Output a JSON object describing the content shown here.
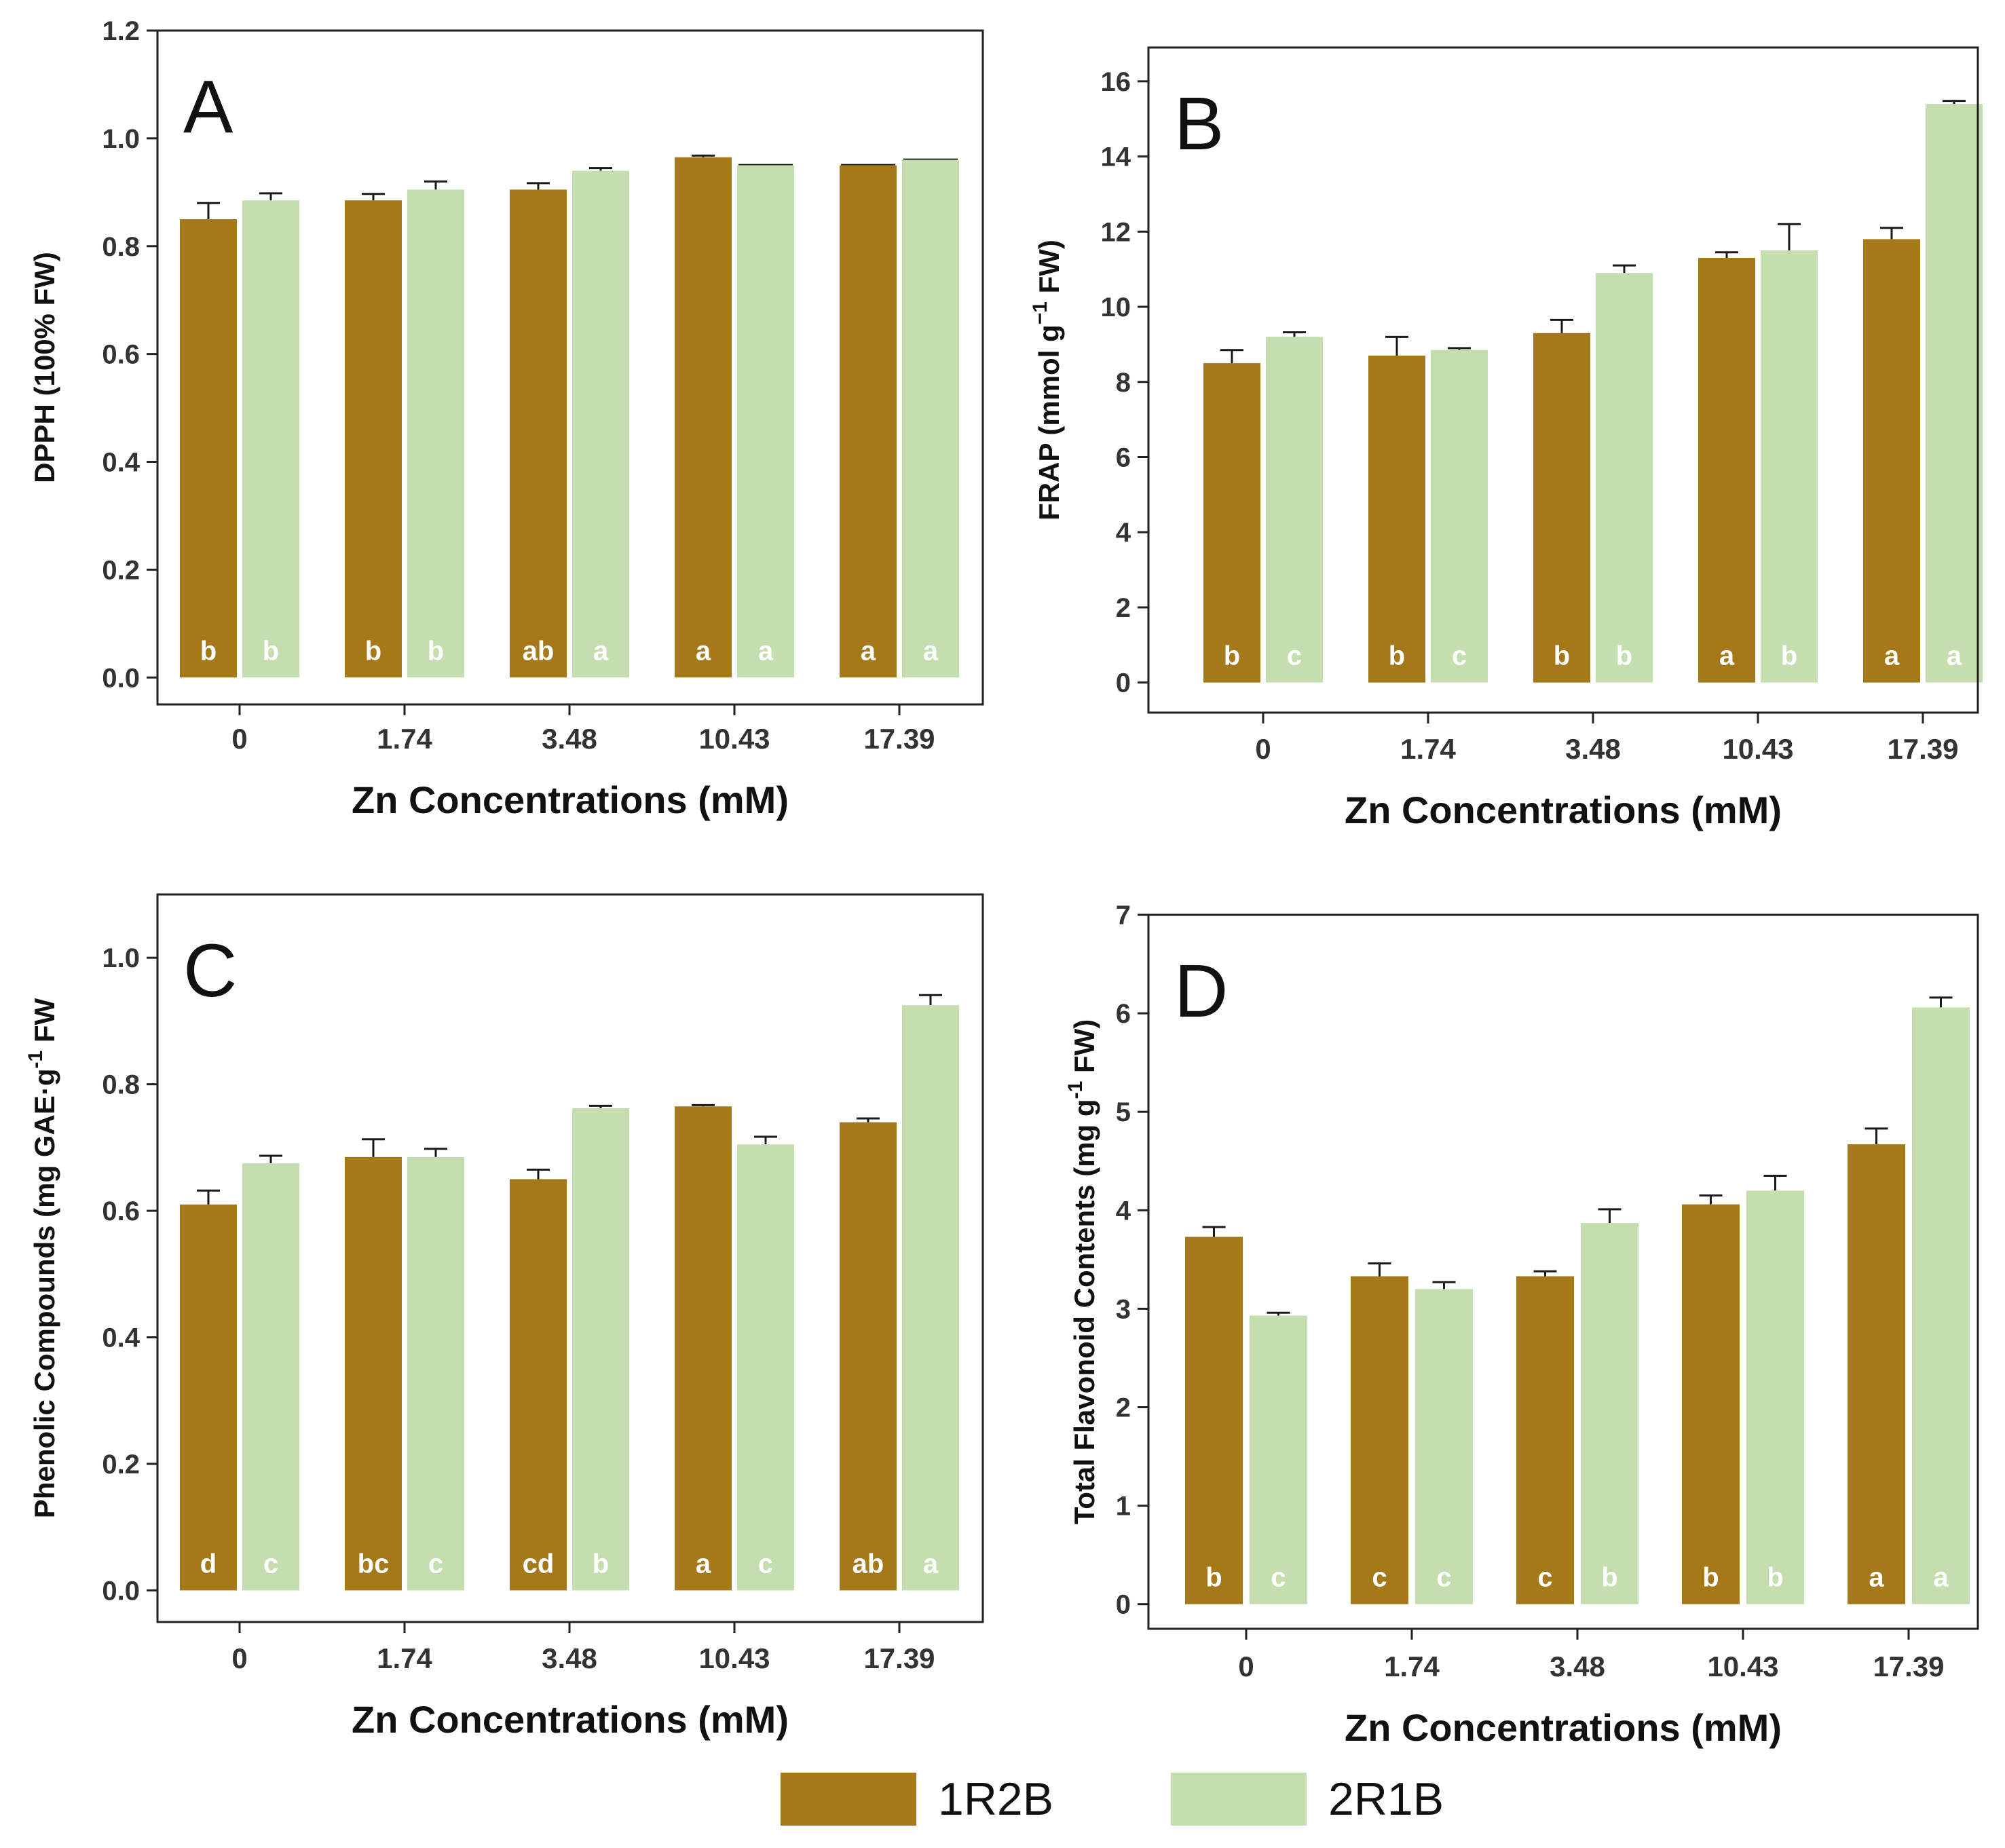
{
  "colors": {
    "series_1": "#A5781A",
    "series_2": "#C5DEB0",
    "axis": "#222222",
    "letter": "#ffffff"
  },
  "legend": {
    "position": "bottom-center",
    "items": [
      "1R2B",
      "2R1B"
    ]
  },
  "chart_data": [
    {
      "type": "bar",
      "panel": "A",
      "categories": [
        "0",
        "1.74",
        "3.48",
        "10.43",
        "17.39"
      ],
      "xlabel": "Zn Concentrations (mM)",
      "ylabel": "DPPH (100% FW)",
      "ylim": [
        -0.05,
        1.2
      ],
      "yticks": [
        "0.0",
        "0.2",
        "0.4",
        "0.6",
        "0.8",
        "1.0",
        "1.2"
      ],
      "series": [
        {
          "name": "1R2B",
          "values": [
            0.85,
            0.885,
            0.905,
            0.965,
            0.95
          ],
          "errors": [
            0.03,
            0.012,
            0.012,
            0.003,
            0.0
          ],
          "letters": [
            "b",
            "b",
            "ab",
            "a",
            "a"
          ]
        },
        {
          "name": "2R1B",
          "values": [
            0.885,
            0.905,
            0.94,
            0.95,
            0.96
          ],
          "errors": [
            0.013,
            0.015,
            0.005,
            0.0,
            0.0
          ],
          "letters": [
            "b",
            "b",
            "a",
            "a",
            "a"
          ]
        }
      ]
    },
    {
      "type": "bar",
      "panel": "B",
      "categories": [
        "0",
        "1.74",
        "3.48",
        "10.43",
        "17.39"
      ],
      "xlabel": "Zn Concentrations (mM)",
      "ylabel": "FRAP (mmol g",
      "ylabel_sup": "−1",
      "ylabel_tail": " FW)",
      "ylim": [
        -0.8,
        16.9
      ],
      "yticks": [
        "0",
        "2",
        "4",
        "6",
        "8",
        "10",
        "12",
        "14",
        "16"
      ],
      "series": [
        {
          "name": "1R2B",
          "values": [
            8.5,
            8.7,
            9.3,
            11.3,
            11.8
          ],
          "errors": [
            0.35,
            0.5,
            0.35,
            0.15,
            0.3
          ],
          "letters": [
            "b",
            "b",
            "b",
            "a",
            "a"
          ]
        },
        {
          "name": "2R1B",
          "values": [
            9.2,
            8.85,
            10.9,
            11.5,
            15.4
          ],
          "errors": [
            0.12,
            0.05,
            0.2,
            0.7,
            0.08
          ],
          "letters": [
            "c",
            "c",
            "b",
            "b",
            "a"
          ]
        }
      ]
    },
    {
      "type": "bar",
      "panel": "C",
      "categories": [
        "0",
        "1.74",
        "3.48",
        "10.43",
        "17.39"
      ],
      "xlabel": "Zn Concentrations (mM)",
      "ylabel": "Phenolic Compounds (mg GAE·g",
      "ylabel_sup": "-1",
      "ylabel_tail": " FW",
      "ylim": [
        -0.05,
        1.1
      ],
      "yticks": [
        "0.0",
        "0.2",
        "0.4",
        "0.6",
        "0.8",
        "1.0"
      ],
      "series": [
        {
          "name": "1R2B",
          "values": [
            0.61,
            0.685,
            0.65,
            0.765,
            0.74
          ],
          "errors": [
            0.022,
            0.028,
            0.015,
            0.002,
            0.006
          ],
          "letters": [
            "d",
            "bc",
            "cd",
            "a",
            "ab"
          ]
        },
        {
          "name": "2R1B",
          "values": [
            0.675,
            0.685,
            0.762,
            0.705,
            0.925
          ],
          "errors": [
            0.012,
            0.013,
            0.004,
            0.012,
            0.016
          ],
          "letters": [
            "c",
            "c",
            "b",
            "c",
            "a"
          ]
        }
      ]
    },
    {
      "type": "bar",
      "panel": "D",
      "categories": [
        "0",
        "1.74",
        "3.48",
        "10.43",
        "17.39"
      ],
      "xlabel": "Zn Concentrations (mM)",
      "ylabel": "Total Flavonoid Contents (mg g",
      "ylabel_sup": "-1",
      "ylabel_tail": " FW)",
      "ylim": [
        -0.25,
        7.0
      ],
      "yticks": [
        "0",
        "1",
        "2",
        "3",
        "4",
        "5",
        "6",
        "7"
      ],
      "series": [
        {
          "name": "1R2B",
          "values": [
            3.73,
            3.33,
            3.33,
            4.06,
            4.67
          ],
          "errors": [
            0.1,
            0.13,
            0.05,
            0.09,
            0.16
          ],
          "letters": [
            "b",
            "c",
            "c",
            "b",
            "a"
          ]
        },
        {
          "name": "2R1B",
          "values": [
            2.93,
            3.2,
            3.87,
            4.2,
            6.06
          ],
          "errors": [
            0.03,
            0.07,
            0.14,
            0.15,
            0.1
          ],
          "letters": [
            "c",
            "c",
            "b",
            "b",
            "a"
          ]
        }
      ]
    }
  ]
}
